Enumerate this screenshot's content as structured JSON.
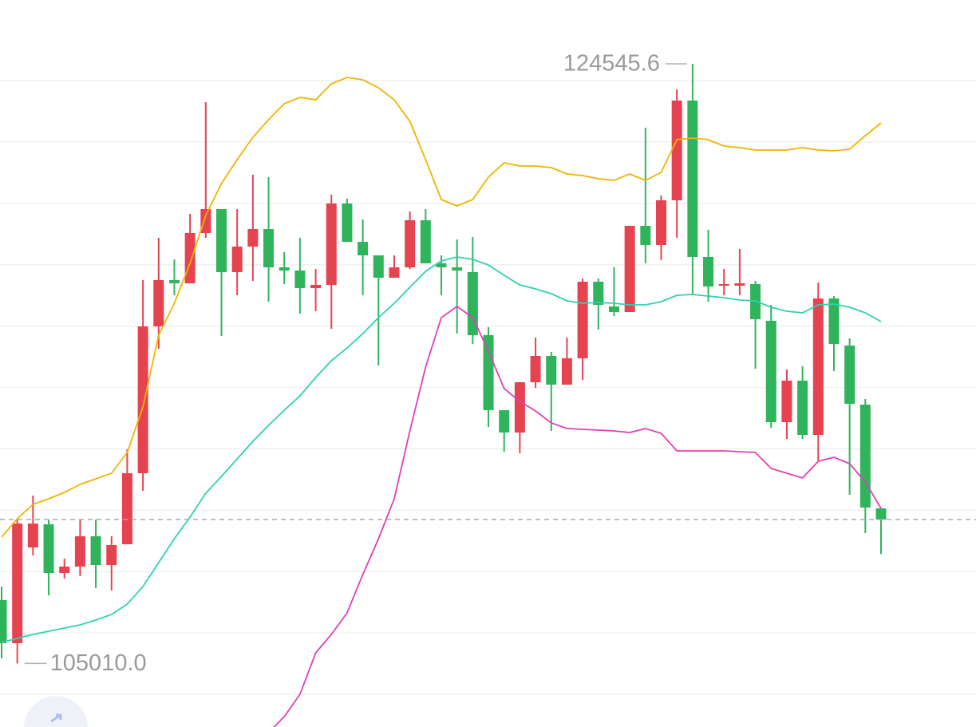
{
  "chart_data": {
    "type": "candlestick",
    "open": [
      107074,
      105670,
      108790,
      109544,
      107958,
      108166,
      109154,
      108218,
      108894,
      111208,
      115992,
      117500,
      117396,
      119034,
      119814,
      117760,
      118592,
      119164,
      117916,
      117812,
      117240,
      117344,
      119996,
      118748,
      118306,
      117578,
      117916,
      119450,
      118046,
      117916,
      117760,
      115706,
      113262,
      112534,
      114172,
      115030,
      114094,
      114952,
      117448,
      116642,
      116460,
      119268,
      118644,
      120100,
      123350,
      118254,
      117318,
      117318,
      117370,
      116174,
      112872,
      114224,
      112456,
      116902,
      115368,
      113444,
      110064
    ],
    "high": [
      107516,
      109700,
      110480,
      109700,
      108426,
      109700,
      109700,
      109154,
      111988,
      117500,
      118878,
      118176,
      119658,
      123298,
      119814,
      119814,
      120932,
      120854,
      118410,
      118878,
      117864,
      120282,
      120152,
      119476,
      118306,
      118306,
      119736,
      119814,
      118306,
      118826,
      118904,
      115966,
      113262,
      114172,
      115628,
      115160,
      115628,
      117552,
      117552,
      117916,
      119268,
      122466,
      120256,
      123714,
      124545.6,
      119138,
      117864,
      118514,
      117474,
      116694,
      114588,
      114692,
      117422,
      116980,
      115602,
      113626,
      110064
    ],
    "low": [
      105176,
      105010.0,
      108530,
      107230,
      107776,
      107854,
      107464,
      107386,
      108894,
      110636,
      115264,
      117006,
      117396,
      118878,
      115680,
      117006,
      117474,
      116798,
      117370,
      116408,
      116486,
      115914,
      118748,
      117006,
      114718,
      117578,
      117864,
      118046,
      117006,
      115758,
      115420,
      112716,
      111910,
      111858,
      113990,
      112586,
      114094,
      114250,
      115888,
      116330,
      116460,
      118046,
      118150,
      118878,
      117058,
      116798,
      117006,
      117006,
      114614,
      112690,
      112326,
      112326,
      111624,
      114536,
      110506,
      109258,
      108582
    ],
    "close": [
      105670,
      109570,
      109570,
      107958,
      108166,
      109154,
      108218,
      108868,
      111208,
      115992,
      117500,
      117396,
      119034,
      119814,
      117760,
      118592,
      119164,
      117916,
      117812,
      117240,
      117344,
      119996,
      118748,
      118306,
      117578,
      117916,
      119450,
      118046,
      117916,
      117812,
      115706,
      113262,
      112534,
      114172,
      115030,
      114094,
      114952,
      117448,
      116694,
      116460,
      119268,
      118644,
      120100,
      123350,
      118254,
      117292,
      117370,
      117396,
      116226,
      112872,
      114224,
      112456,
      116902,
      115420,
      113470,
      110090,
      109700
    ],
    "up_color": "#e5434f",
    "down_color": "#2fb45c",
    "lines": [
      {
        "color": "#f0b400",
        "values": [
          109128,
          109726,
          110194,
          110376,
          110584,
          110844,
          111026,
          111208,
          111884,
          113366,
          115706,
          116746,
          118046,
          119606,
          120646,
          121426,
          122154,
          122726,
          123246,
          123454,
          123376,
          123896,
          124104,
          124026,
          123766,
          123376,
          122674,
          121426,
          120126,
          119918,
          120126,
          120854,
          121322,
          121218,
          121218,
          121166,
          120958,
          120906,
          120802,
          120750,
          120958,
          120750,
          121010,
          122076,
          122128,
          122076,
          121868,
          121816,
          121738,
          121738,
          121738,
          121816,
          121738,
          121712,
          121764,
          122206,
          122622
        ]
      },
      {
        "color": "#2fd1b0",
        "values": [
          105696,
          105826,
          105956,
          106060,
          106164,
          106268,
          106424,
          106606,
          106944,
          107516,
          108296,
          109076,
          109778,
          110558,
          111104,
          111676,
          112248,
          112768,
          113262,
          113730,
          114328,
          114874,
          115290,
          115758,
          116278,
          116746,
          117266,
          117786,
          118124,
          118254,
          118176,
          117994,
          117656,
          117344,
          117214,
          117058,
          116824,
          116746,
          116772,
          116746,
          116694,
          116694,
          116798,
          117006,
          117032,
          116980,
          116928,
          116850,
          116824,
          116616,
          116486,
          116434,
          116694,
          116720,
          116616,
          116434,
          116148
        ]
      },
      {
        "color": "#e040b5",
        "values": [
          null,
          null,
          null,
          null,
          null,
          null,
          null,
          null,
          null,
          null,
          null,
          null,
          null,
          null,
          null,
          null,
          null,
          102758,
          103278,
          104006,
          105358,
          105956,
          106658,
          107906,
          109076,
          110376,
          112586,
          114666,
          116278,
          116642,
          116278,
          115186,
          113964,
          113548,
          113236,
          112846,
          112664,
          112638,
          112612,
          112586,
          112534,
          112664,
          112508,
          111936,
          111936,
          111936,
          111936,
          111910,
          111884,
          111364,
          111208,
          111052,
          111598,
          111728,
          111520,
          110922,
          110064
        ]
      }
    ],
    "ylim": [
      102940,
      126626
    ],
    "yticks": [
      124000,
      122000,
      120000,
      118000,
      116000,
      114000,
      112000,
      110000,
      108000,
      106000,
      104000
    ],
    "grid": true,
    "last_price_line": true,
    "annotations": [
      {
        "value": 124545.6,
        "label": "124545.6"
      },
      {
        "value": 105010.0,
        "label": "105010.0"
      }
    ]
  }
}
